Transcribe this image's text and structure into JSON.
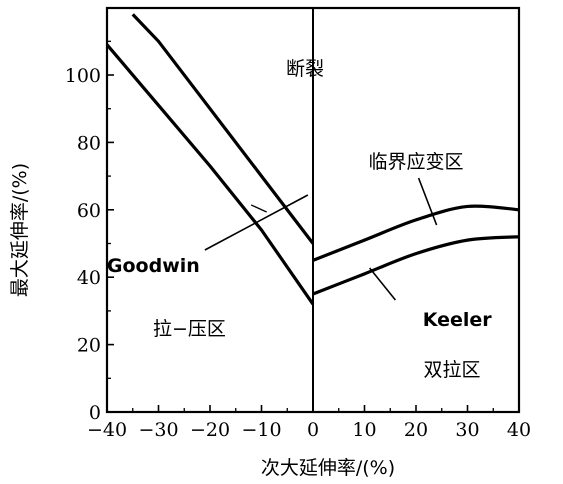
{
  "chart_data": {
    "type": "line",
    "title": "",
    "xlabel": "次大延伸率/(%)",
    "ylabel": "最大延伸率/(%)",
    "xlim": [
      -40,
      40
    ],
    "ylim": [
      0,
      118
    ],
    "xticks": [
      -40,
      -30,
      -20,
      -10,
      0,
      10,
      20,
      30,
      40
    ],
    "xtick_labels": [
      "−40",
      "−30",
      "−20",
      "−10",
      "0",
      "10",
      "20",
      "30",
      "40"
    ],
    "yticks": [
      0,
      20,
      40,
      60,
      80,
      100
    ],
    "ytick_labels": [
      "0",
      "20",
      "40",
      "60",
      "80",
      "100"
    ],
    "grid": false,
    "series": [
      {
        "name": "Goodwin",
        "x": [
          -35,
          -30,
          -20,
          -10,
          0
        ],
        "y": [
          118,
          110,
          90,
          70,
          50
        ]
      },
      {
        "name": "",
        "x": [
          -40,
          -30,
          -20,
          -10,
          0
        ],
        "y": [
          109,
          91,
          73,
          54,
          32
        ]
      },
      {
        "name": "",
        "x": [
          0,
          10,
          20,
          30,
          40
        ],
        "y": [
          45,
          51,
          57,
          61,
          60
        ]
      },
      {
        "name": "Keeler",
        "x": [
          0,
          10,
          20,
          30,
          40
        ],
        "y": [
          35,
          41,
          47,
          51,
          52
        ]
      }
    ],
    "annotations": {
      "fracture": "断裂",
      "critical_strain_region": "临界应变区",
      "tension_compression": "拉−压区",
      "biaxial_tension": "双拉区",
      "goodwin": "Goodwin",
      "keeler": "Keeler"
    }
  }
}
